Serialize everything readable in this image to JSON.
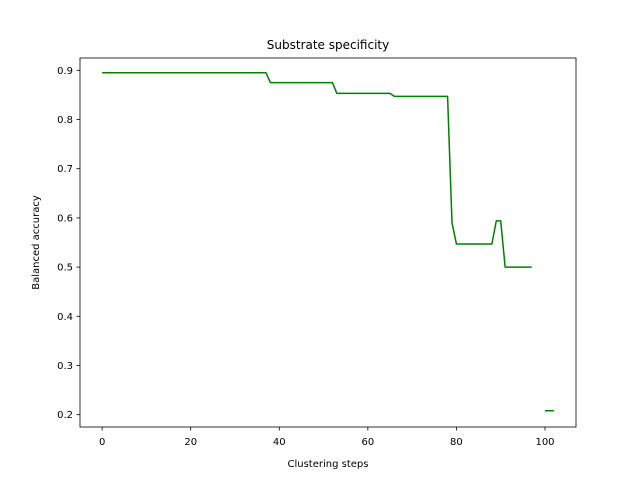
{
  "chart_data": {
    "type": "line",
    "title": "Substrate specificity",
    "xlabel": "Clustering steps",
    "ylabel": "Balanced accuracy",
    "xlim": [
      -5,
      107
    ],
    "ylim": [
      0.175,
      0.925
    ],
    "xticks": [
      0,
      20,
      40,
      60,
      80,
      100
    ],
    "yticks": [
      0.2,
      0.3,
      0.4,
      0.5,
      0.6,
      0.7,
      0.8,
      0.9
    ],
    "grid": false,
    "series": [
      {
        "color": "#008000",
        "segments": [
          [
            [
              0,
              0.895
            ],
            [
              37,
              0.895
            ],
            [
              38,
              0.875
            ],
            [
              52,
              0.875
            ],
            [
              53,
              0.853
            ],
            [
              65,
              0.853
            ],
            [
              66,
              0.847
            ],
            [
              78,
              0.847
            ],
            [
              79,
              0.59
            ],
            [
              80,
              0.547
            ],
            [
              88,
              0.547
            ],
            [
              89,
              0.594
            ],
            [
              90,
              0.594
            ],
            [
              91,
              0.5
            ],
            [
              97,
              0.5
            ]
          ],
          [
            [
              100,
              0.208
            ],
            [
              102,
              0.208
            ]
          ]
        ]
      }
    ]
  }
}
